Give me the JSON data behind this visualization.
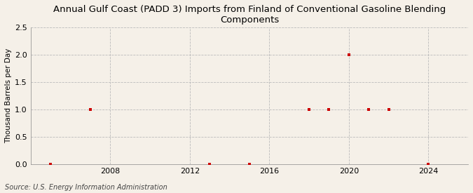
{
  "title": "Annual Gulf Coast (PADD 3) Imports from Finland of Conventional Gasoline Blending\nComponents",
  "ylabel": "Thousand Barrels per Day",
  "source": "Source: U.S. Energy Information Administration",
  "background_color": "#f5f0e8",
  "plot_background_color": "#f5f0e8",
  "data_x": [
    2005,
    2007,
    2013,
    2015,
    2018,
    2019,
    2020,
    2021,
    2022,
    2024
  ],
  "data_y": [
    0.0,
    1.0,
    0.0,
    0.0,
    1.0,
    1.0,
    2.0,
    1.0,
    1.0,
    0.0
  ],
  "marker_color": "#cc0000",
  "marker_size": 3,
  "xlim": [
    2004,
    2026
  ],
  "ylim": [
    0,
    2.5
  ],
  "xticks": [
    2008,
    2012,
    2016,
    2020,
    2024
  ],
  "yticks": [
    0.0,
    0.5,
    1.0,
    1.5,
    2.0,
    2.5
  ],
  "grid_color": "#bbbbbb",
  "title_fontsize": 9.5,
  "label_fontsize": 7.5,
  "tick_fontsize": 8,
  "source_fontsize": 7
}
